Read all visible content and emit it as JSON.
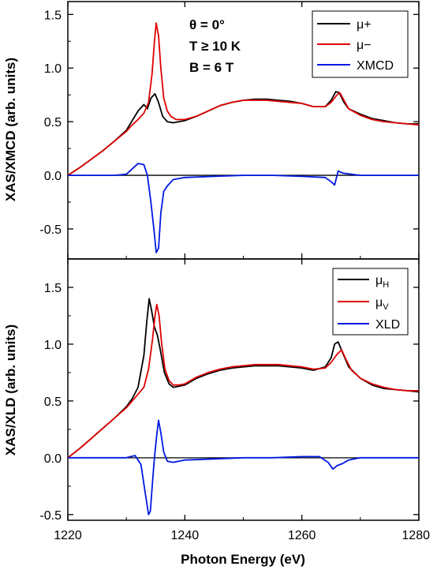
{
  "figure": {
    "xlabel": "Photon Energy (eV)"
  },
  "panels": [
    {
      "annotations": [
        "θ = 0°",
        "T ≥ 10 K",
        "B = 6 T"
      ]
    },
    {
      "annotations": []
    }
  ],
  "chart_data": [
    {
      "type": "line",
      "xlabel": "Photon Energy (eV)",
      "ylabel": "XAS/XMCD (arb. units)",
      "xlim": [
        1220,
        1280
      ],
      "ylim": [
        -0.78,
        1.62
      ],
      "xticks": [
        "1220",
        "1240",
        "1260",
        "1280"
      ],
      "yticks": [
        "-0.5",
        "0.0",
        "0.5",
        "1.0",
        "1.5"
      ],
      "ytick_values": [
        -0.5,
        0.0,
        0.5,
        1.0,
        1.5
      ],
      "legend_position": "top-right",
      "grid": false,
      "series": [
        {
          "name": "μ+",
          "color": "#000000",
          "x": [
            1220,
            1222,
            1224,
            1226,
            1228,
            1230,
            1231,
            1232,
            1233,
            1233.6,
            1234.2,
            1234.9,
            1235.5,
            1236.2,
            1237,
            1238,
            1239,
            1240,
            1242,
            1244,
            1246,
            1248,
            1250,
            1252,
            1254,
            1256,
            1258,
            1260,
            1262,
            1264,
            1265,
            1265.8,
            1266.4,
            1267.2,
            1268,
            1270,
            1272,
            1274,
            1276,
            1278,
            1280
          ],
          "values": [
            0.0,
            0.07,
            0.15,
            0.23,
            0.32,
            0.42,
            0.51,
            0.6,
            0.66,
            0.62,
            0.72,
            0.76,
            0.68,
            0.55,
            0.5,
            0.49,
            0.5,
            0.51,
            0.55,
            0.6,
            0.65,
            0.68,
            0.7,
            0.71,
            0.71,
            0.7,
            0.69,
            0.67,
            0.64,
            0.64,
            0.7,
            0.78,
            0.77,
            0.68,
            0.62,
            0.57,
            0.53,
            0.51,
            0.49,
            0.48,
            0.48
          ]
        },
        {
          "name": "μ−",
          "color": "#e00000",
          "x": [
            1220,
            1222,
            1224,
            1226,
            1228,
            1230,
            1231,
            1232,
            1233,
            1233.8,
            1234.4,
            1234.8,
            1235.1,
            1235.5,
            1235.9,
            1236.4,
            1237,
            1237.6,
            1238.5,
            1240,
            1242,
            1244,
            1246,
            1248,
            1250,
            1252,
            1254,
            1256,
            1258,
            1260,
            1262,
            1264,
            1265,
            1266,
            1266.5,
            1267.2,
            1268,
            1270,
            1272,
            1274,
            1276,
            1278,
            1280
          ],
          "values": [
            0.0,
            0.07,
            0.15,
            0.23,
            0.32,
            0.41,
            0.47,
            0.52,
            0.58,
            0.68,
            0.95,
            1.25,
            1.42,
            1.3,
            1.0,
            0.72,
            0.6,
            0.55,
            0.52,
            0.52,
            0.55,
            0.6,
            0.65,
            0.68,
            0.7,
            0.7,
            0.7,
            0.69,
            0.68,
            0.67,
            0.64,
            0.64,
            0.68,
            0.75,
            0.77,
            0.7,
            0.62,
            0.56,
            0.52,
            0.5,
            0.49,
            0.48,
            0.47
          ]
        },
        {
          "name": "XMCD",
          "color": "#0018e0",
          "x": [
            1220,
            1225,
            1228,
            1230,
            1231,
            1232,
            1233,
            1233.6,
            1234.2,
            1234.8,
            1235.1,
            1235.5,
            1235.9,
            1236.4,
            1237,
            1238,
            1240,
            1245,
            1250,
            1255,
            1260,
            1264,
            1265,
            1265.6,
            1266.2,
            1267,
            1270,
            1275,
            1280
          ],
          "values": [
            0.0,
            0.0,
            0.0,
            0.01,
            0.06,
            0.11,
            0.1,
            0.0,
            -0.25,
            -0.55,
            -0.72,
            -0.68,
            -0.35,
            -0.15,
            -0.1,
            -0.04,
            -0.02,
            -0.01,
            0.0,
            0.0,
            -0.01,
            -0.02,
            -0.06,
            -0.09,
            0.04,
            0.02,
            0.0,
            0.0,
            0.0
          ]
        }
      ]
    },
    {
      "type": "line",
      "xlabel": "Photon Energy (eV)",
      "ylabel": "XAS/XLD (arb. units)",
      "xlim": [
        1220,
        1280
      ],
      "ylim": [
        -0.55,
        1.75
      ],
      "xticks": [
        "1220",
        "1240",
        "1260",
        "1280"
      ],
      "yticks": [
        "-0.5",
        "0.0",
        "0.5",
        "1.0",
        "1.5"
      ],
      "ytick_values": [
        -0.5,
        0.0,
        0.5,
        1.0,
        1.5
      ],
      "legend_position": "top-right",
      "grid": false,
      "series": [
        {
          "name": "μH",
          "label_main": "μ",
          "label_sub": "H",
          "color": "#000000",
          "x": [
            1220,
            1222,
            1224,
            1226,
            1228,
            1230,
            1231,
            1232,
            1233,
            1233.5,
            1233.9,
            1234.3,
            1234.8,
            1235.3,
            1235.8,
            1236.5,
            1237.3,
            1238,
            1239,
            1240,
            1242,
            1244,
            1246,
            1248,
            1250,
            1252,
            1254,
            1256,
            1258,
            1260,
            1262,
            1264,
            1265,
            1265.6,
            1266.2,
            1267,
            1268,
            1270,
            1272,
            1274,
            1276,
            1278,
            1280
          ],
          "values": [
            0.0,
            0.08,
            0.17,
            0.26,
            0.35,
            0.45,
            0.52,
            0.62,
            0.9,
            1.2,
            1.4,
            1.3,
            1.15,
            1.08,
            0.95,
            0.75,
            0.65,
            0.62,
            0.63,
            0.64,
            0.7,
            0.74,
            0.77,
            0.79,
            0.8,
            0.81,
            0.81,
            0.81,
            0.8,
            0.79,
            0.77,
            0.8,
            0.88,
            1.0,
            1.02,
            0.92,
            0.8,
            0.7,
            0.64,
            0.61,
            0.6,
            0.59,
            0.58
          ]
        },
        {
          "name": "μV",
          "label_main": "μ",
          "label_sub": "V",
          "color": "#e00000",
          "x": [
            1220,
            1222,
            1224,
            1226,
            1228,
            1230,
            1231,
            1232,
            1233,
            1233.8,
            1234.5,
            1234.9,
            1235.2,
            1235.6,
            1236,
            1236.6,
            1237.3,
            1238,
            1239,
            1240,
            1242,
            1244,
            1246,
            1248,
            1250,
            1252,
            1254,
            1256,
            1258,
            1260,
            1262,
            1264,
            1265,
            1266,
            1266.8,
            1267.6,
            1268.5,
            1270,
            1272,
            1274,
            1276,
            1278,
            1280
          ],
          "values": [
            0.0,
            0.08,
            0.17,
            0.26,
            0.35,
            0.44,
            0.5,
            0.56,
            0.62,
            0.78,
            1.05,
            1.25,
            1.35,
            1.25,
            1.02,
            0.78,
            0.68,
            0.64,
            0.64,
            0.65,
            0.71,
            0.75,
            0.78,
            0.8,
            0.81,
            0.82,
            0.82,
            0.82,
            0.81,
            0.8,
            0.78,
            0.79,
            0.84,
            0.91,
            0.95,
            0.86,
            0.77,
            0.7,
            0.65,
            0.62,
            0.6,
            0.59,
            0.59
          ]
        },
        {
          "name": "XLD",
          "color": "#0018e0",
          "x": [
            1220,
            1225,
            1228,
            1230,
            1231.5,
            1232.5,
            1233.2,
            1233.8,
            1234.1,
            1234.5,
            1234.8,
            1235.2,
            1235.5,
            1235.9,
            1236.4,
            1237,
            1238,
            1240,
            1245,
            1250,
            1255,
            1260,
            1263,
            1264.5,
            1265.3,
            1266,
            1267,
            1268,
            1270,
            1275,
            1280
          ],
          "values": [
            0.0,
            0.0,
            0.0,
            0.0,
            0.02,
            -0.06,
            -0.3,
            -0.5,
            -0.47,
            -0.2,
            0.0,
            0.2,
            0.33,
            0.22,
            0.05,
            -0.03,
            -0.04,
            -0.02,
            -0.01,
            0.0,
            0.0,
            0.01,
            0.01,
            -0.04,
            -0.1,
            -0.07,
            -0.05,
            -0.02,
            0.0,
            0.0,
            0.0
          ]
        }
      ]
    }
  ]
}
